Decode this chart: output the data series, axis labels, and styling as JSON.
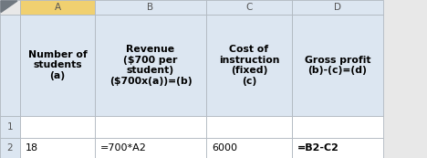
{
  "col_labels": [
    "A",
    "B",
    "C",
    "D"
  ],
  "header_texts": [
    "Number of\nstudents\n(a)",
    "Revenue\n($700 per\nstudent)\n($700x(a))=(b)",
    "Cost of\ninstruction\n(fixed)\n(c)",
    "Gross profit\n(b)-(c)=(d)"
  ],
  "data_row": [
    "18",
    "=700*A2",
    "6000",
    "=B2-C2"
  ],
  "bold_data": [
    false,
    false,
    false,
    true
  ],
  "row_nums": [
    "1",
    "2"
  ],
  "col_header_bg": "#f0d070",
  "header_bg": "#dce6f1",
  "row_label_bg": "#dce6f1",
  "cell_bg": "#ffffff",
  "border_color": "#b0b8c0",
  "text_color": "#000000",
  "label_color": "#555555",
  "fig_bg": "#e8e8e8",
  "triangle_color": "#707880"
}
